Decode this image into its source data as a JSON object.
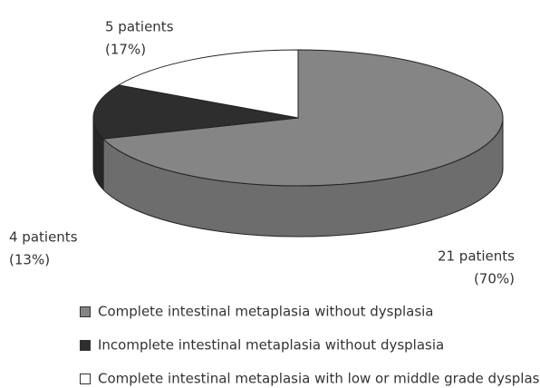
{
  "chart_data": {
    "type": "pie",
    "categories": [
      "Complete intestinal metaplasia without dysplasia",
      "Incomplete intestinal metaplasia without dysplasia",
      "Complete intestinal metaplasia with low or middle grade dysplasia"
    ],
    "values": [
      70,
      13,
      17
    ],
    "value_labels": [
      "(70%)",
      "(13%)",
      "(17%)"
    ],
    "count_labels": [
      "21 patients",
      "4 patients",
      "5 patients"
    ],
    "colors": [
      "#858585",
      "#2e2e2e",
      "#ffffff"
    ],
    "legend": "bottom"
  }
}
